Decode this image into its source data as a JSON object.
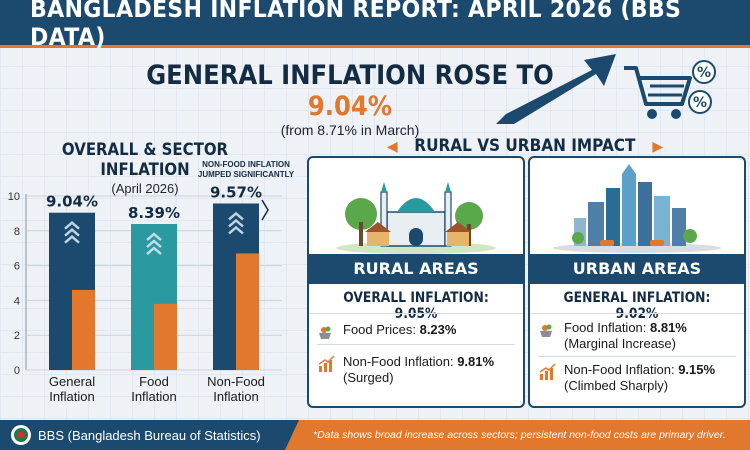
{
  "header": {
    "title": "BANGLADESH INFLATION REPORT: APRIL 2026 (BBS DATA)"
  },
  "headline": {
    "prefix": "GENERAL INFLATION ROSE TO ",
    "value": "9.04%",
    "sub": "(from 8.71% in March)"
  },
  "icons": {
    "trend": "trend-up-arrow-icon",
    "cart": "shopping-cart-icon",
    "percent": "percent-badge-icon"
  },
  "left": {
    "title": "OVERALL & SECTOR INFLATION",
    "subtitle": "(April 2026)",
    "note": "NON-FOOD INFLATION JUMPED SIGNIFICANTLY"
  },
  "chart_data": {
    "type": "bar",
    "title": "OVERALL & SECTOR INFLATION",
    "subtitle": "(April 2026)",
    "categories": [
      "General Inflation",
      "Food Inflation",
      "Non-Food Inflation"
    ],
    "category_lines": [
      [
        "General",
        "Inflation"
      ],
      [
        "Food",
        "Inflation"
      ],
      [
        "Non-Food",
        "Inflation"
      ]
    ],
    "values": [
      9.04,
      8.39,
      9.57
    ],
    "value_labels": [
      "9.04%",
      "8.39%",
      "9.57%"
    ],
    "inner_values": [
      4.6,
      3.8,
      6.7
    ],
    "bar_colors": [
      "#1c4a6e",
      "#2a9aa0",
      "#1c4a6e"
    ],
    "inner_color": "#e2772e",
    "ylim": [
      0,
      10
    ],
    "yticks": [
      0,
      2,
      4,
      6,
      8,
      10
    ],
    "grid": true
  },
  "right": {
    "title": "RURAL VS URBAN IMPACT",
    "rural": {
      "band": "RURAL AREAS",
      "overall": "OVERALL INFLATION: 9.05%",
      "item1_label": "Food Prices: ",
      "item1_value": "8.23%",
      "item2_label": "Non-Food Inflation: ",
      "item2_value": "9.81%",
      "item2_note": "(Surged)"
    },
    "urban": {
      "band": "URBAN AREAS",
      "overall": "GENERAL INFLATION: 9.02%",
      "item1_label": "Food Inflation: ",
      "item1_value": "8.81%",
      "item1_note": "(Marginal Increase)",
      "item2_label": "Non-Food Inflation: ",
      "item2_value": "9.15%",
      "item2_note": "(Climbed Sharply)"
    }
  },
  "footer": {
    "source": "BBS (Bangladesh Bureau of Statistics)",
    "note": "*Data shows broad increase across sectors; persistent non-food costs are primary driver."
  },
  "colors": {
    "navy": "#1c4a6e",
    "orange": "#e2772e",
    "teal": "#2a9aa0"
  }
}
